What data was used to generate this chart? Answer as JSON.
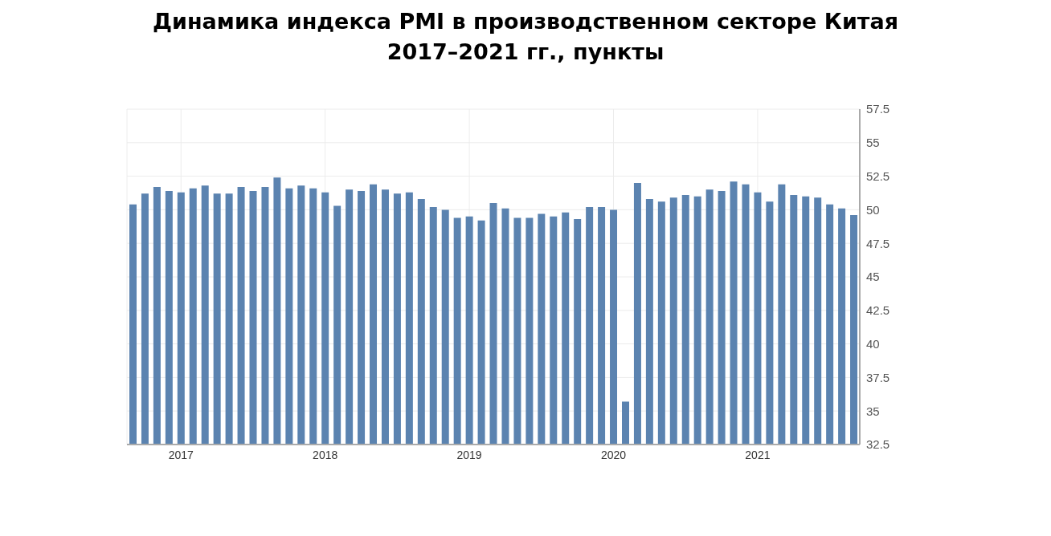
{
  "chart_data": {
    "type": "bar",
    "title": "Динамика индекса PMI в производственном секторе Китая\n2017–2021 гг., пункты",
    "categories": [
      null,
      null,
      null,
      null,
      "2017",
      null,
      null,
      null,
      null,
      null,
      null,
      null,
      null,
      null,
      null,
      null,
      "2018",
      null,
      null,
      null,
      null,
      null,
      null,
      null,
      null,
      null,
      null,
      null,
      "2019",
      null,
      null,
      null,
      null,
      null,
      null,
      null,
      null,
      null,
      null,
      null,
      "2020",
      null,
      null,
      null,
      null,
      null,
      null,
      null,
      null,
      null,
      null,
      null,
      "2021",
      null,
      null,
      null,
      null,
      null,
      null,
      null,
      null
    ],
    "values": [
      50.4,
      51.2,
      51.7,
      51.4,
      51.3,
      51.6,
      51.8,
      51.2,
      51.2,
      51.7,
      51.4,
      51.7,
      52.4,
      51.6,
      51.8,
      51.6,
      51.3,
      50.3,
      51.5,
      51.4,
      51.9,
      51.5,
      51.2,
      51.3,
      50.8,
      50.2,
      50.0,
      49.4,
      49.5,
      49.2,
      50.5,
      50.1,
      49.4,
      49.4,
      49.7,
      49.5,
      49.8,
      49.3,
      50.2,
      50.2,
      50.0,
      35.7,
      52.0,
      50.8,
      50.6,
      50.9,
      51.1,
      51.0,
      51.5,
      51.4,
      52.1,
      51.9,
      51.3,
      50.6,
      51.9,
      51.1,
      51.0,
      50.9,
      50.4,
      50.1,
      49.6
    ],
    "color": "#5b83b0",
    "ylim": [
      32.5,
      57.5
    ],
    "yticks": [
      32.5,
      35,
      37.5,
      40,
      42.5,
      45,
      47.5,
      50,
      52.5,
      55,
      57.5
    ],
    "grid": true
  }
}
